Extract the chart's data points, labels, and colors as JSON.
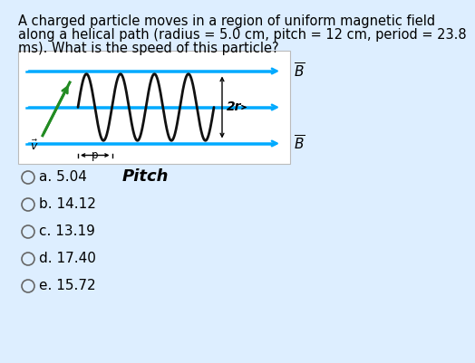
{
  "bg_color": "#ddeeff",
  "fig_bg": "#ddeeff",
  "question_line1": "A charged particle moves in a region of uniform magnetic field",
  "question_line2": "along a helical path (radius = 5.0 cm, pitch = 12 cm, period = 23.8",
  "question_line3": "ms). What is the speed of this particle?",
  "question_fontsize": 10.5,
  "diagram_bg": "#ffffff",
  "options": [
    "a. 5.04",
    "b. 14.12",
    "c. 13.19",
    "d. 17.40",
    "e. 15.72"
  ],
  "options_fontsize": 11.0,
  "line_color": "#00aaff",
  "helix_color": "#111111",
  "v_arrow_color": "#228B22",
  "label_2r": "2r",
  "label_pitch": "Pitch",
  "label_p": "p"
}
